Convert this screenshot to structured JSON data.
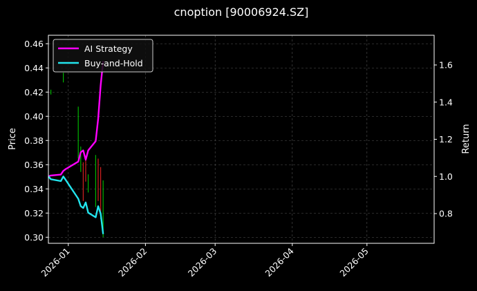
{
  "chart_data": {
    "type": "line",
    "title": "cnoption [90006924.SZ]",
    "xlabel": "",
    "ylabel_left": "Price",
    "ylabel_right": "Return",
    "x_ticks": [
      "2026-01",
      "2026-02",
      "2026-03",
      "2026-04",
      "2026-05"
    ],
    "y_left_ticks": [
      "0.30",
      "0.32",
      "0.34",
      "0.36",
      "0.38",
      "0.40",
      "0.42",
      "0.44",
      "0.46"
    ],
    "y_right_ticks": [
      "0.8",
      "1.0",
      "1.2",
      "1.4",
      "1.6"
    ],
    "ylim_left": [
      0.295,
      0.467
    ],
    "ylim_right": [
      0.64,
      1.76
    ],
    "xlim": [
      "2025-12-24",
      "2026-05-28"
    ],
    "grid": true,
    "legend_position": "top-left",
    "colors": {
      "background": "#000000",
      "axes": "#ffffff",
      "grid": "#555555",
      "candle_up": "#00b400",
      "candle_down": "#d22020"
    },
    "series": [
      {
        "name": "AI Strategy",
        "axis": "right",
        "color": "#ff00ff",
        "x": [
          "2025-12-24",
          "2025-12-25",
          "2025-12-29",
          "2025-12-30",
          "2025-12-31",
          "2026-01-05",
          "2026-01-06",
          "2026-01-07",
          "2026-01-08",
          "2026-01-09",
          "2026-01-12",
          "2026-01-13",
          "2026-01-14",
          "2026-01-15"
        ],
        "values": [
          1.0,
          1.005,
          1.01,
          1.03,
          1.04,
          1.08,
          1.13,
          1.14,
          1.09,
          1.14,
          1.19,
          1.31,
          1.49,
          1.62
        ]
      },
      {
        "name": "Buy-and-Hold",
        "axis": "right",
        "color": "#22e5ee",
        "x": [
          "2025-12-24",
          "2025-12-25",
          "2025-12-29",
          "2025-12-30",
          "2025-12-31",
          "2026-01-05",
          "2026-01-06",
          "2026-01-07",
          "2026-01-08",
          "2026-01-09",
          "2026-01-12",
          "2026-01-13",
          "2026-01-14",
          "2026-01-15"
        ],
        "values": [
          1.0,
          0.985,
          0.975,
          1.0,
          0.98,
          0.88,
          0.84,
          0.83,
          0.86,
          0.805,
          0.78,
          0.84,
          0.8,
          0.69
        ]
      }
    ],
    "candles": [
      {
        "x": "2025-12-25",
        "low": 0.418,
        "high": 0.422,
        "dir": "up"
      },
      {
        "x": "2025-12-30",
        "low": 0.428,
        "high": 0.436,
        "dir": "up"
      },
      {
        "x": "2026-01-05",
        "low": 0.365,
        "high": 0.408,
        "dir": "up"
      },
      {
        "x": "2026-01-06",
        "low": 0.354,
        "high": 0.375,
        "dir": "up"
      },
      {
        "x": "2026-01-07",
        "low": 0.33,
        "high": 0.362,
        "dir": "down"
      },
      {
        "x": "2026-01-08",
        "low": 0.346,
        "high": 0.366,
        "dir": "down"
      },
      {
        "x": "2026-01-09",
        "low": 0.337,
        "high": 0.352,
        "dir": "up"
      },
      {
        "x": "2026-01-12",
        "low": 0.325,
        "high": 0.368,
        "dir": "up"
      },
      {
        "x": "2026-01-13",
        "low": 0.33,
        "high": 0.365,
        "dir": "down"
      },
      {
        "x": "2026-01-14",
        "low": 0.315,
        "high": 0.358,
        "dir": "down"
      },
      {
        "x": "2026-01-15",
        "low": 0.3,
        "high": 0.347,
        "dir": "up"
      }
    ]
  }
}
